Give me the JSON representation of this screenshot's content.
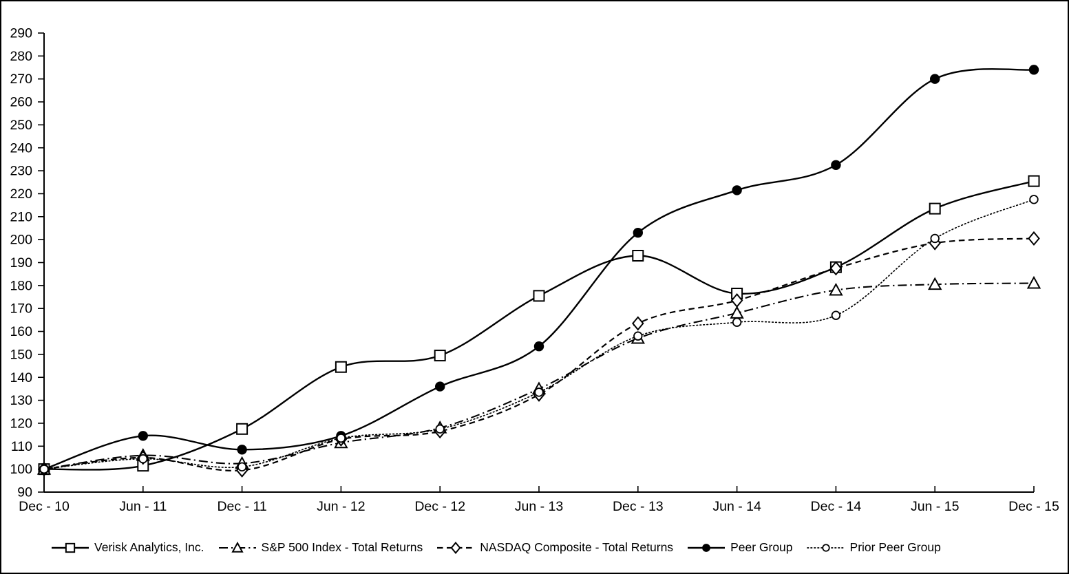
{
  "chart_data": {
    "type": "line",
    "title": "",
    "xlabel": "",
    "ylabel": "",
    "ylim": [
      90,
      290
    ],
    "ytick_step": 10,
    "grid": false,
    "legend_position": "bottom",
    "line_color": "#000000",
    "background_color": "#ffffff",
    "categories": [
      "Dec - 10",
      "Jun - 11",
      "Dec - 11",
      "Jun - 12",
      "Dec - 12",
      "Jun - 13",
      "Dec - 13",
      "Jun - 14",
      "Dec - 14",
      "Jun - 15",
      "Dec - 15"
    ],
    "series": [
      {
        "id": "verisk-analytics-inc",
        "name": "Verisk Analytics, Inc.",
        "marker": "square-open",
        "line": "solid",
        "values": [
          100,
          101.5,
          117.5,
          144.5,
          149.5,
          175.5,
          193,
          176.5,
          188,
          213.5,
          225.5
        ]
      },
      {
        "id": "sp-500-index-total-returns",
        "name": "S&P 500 Index - Total Returns",
        "marker": "triangle-open",
        "line": "dash-dot",
        "values": [
          100,
          106,
          102.5,
          111.5,
          118,
          135,
          157,
          168,
          178,
          180.5,
          181
        ]
      },
      {
        "id": "nasdaq-composite-total-returns",
        "name": "NASDAQ Composite - Total Returns",
        "marker": "diamond-open",
        "line": "dashed",
        "values": [
          100,
          105,
          99.5,
          113,
          116.5,
          132.5,
          163.5,
          173.5,
          187.5,
          198.5,
          200.5
        ]
      },
      {
        "id": "peer-group",
        "name": "Peer Group",
        "marker": "circle-filled",
        "line": "solid",
        "values": [
          100,
          114.5,
          108.5,
          114.5,
          136,
          153.5,
          203,
          221.5,
          232.5,
          270,
          274
        ]
      },
      {
        "id": "prior-peer-group",
        "name": "Prior Peer Group",
        "marker": "circle-open",
        "line": "dotted",
        "values": [
          100,
          104.5,
          101,
          113.5,
          117.5,
          133.5,
          158,
          164,
          167,
          200.5,
          217.5
        ]
      }
    ]
  }
}
